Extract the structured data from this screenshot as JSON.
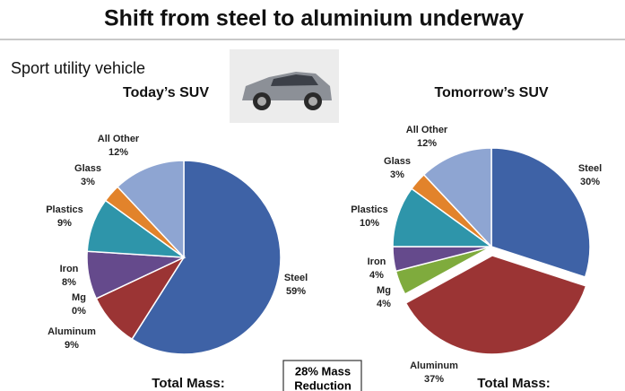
{
  "title": "Shift from steel to aluminium underway",
  "subtitle": "Sport utility vehicle",
  "annotation": [
    "28% Mass",
    "Reduction"
  ],
  "chart_data": [
    {
      "type": "pie",
      "title": "Today’s SUV",
      "categories": [
        "Steel",
        "Aluminum",
        "Mg",
        "Iron",
        "Plastics",
        "Glass",
        "All Other"
      ],
      "values": [
        59,
        9,
        0,
        8,
        9,
        3,
        12
      ],
      "value_labels": [
        "59%",
        "9%",
        "0%",
        "8%",
        "9%",
        "3%",
        "12%"
      ],
      "colors": [
        "#3e62a6",
        "#9b3434",
        "#7fab3d",
        "#654a8c",
        "#2e95aa",
        "#e2832b",
        "#8ea5d2"
      ],
      "footer": "Total Mass:"
    },
    {
      "type": "pie",
      "title": "Tomorrow’s SUV",
      "categories": [
        "Steel",
        "Aluminum",
        "Mg",
        "Iron",
        "Plastics",
        "Glass",
        "All Other"
      ],
      "values": [
        30,
        37,
        4,
        4,
        10,
        3,
        12
      ],
      "value_labels": [
        "30%",
        "37%",
        "4%",
        "4%",
        "10%",
        "3%",
        "12%"
      ],
      "colors": [
        "#3e62a6",
        "#9b3434",
        "#7fab3d",
        "#654a8c",
        "#2e95aa",
        "#e2832b",
        "#8ea5d2"
      ],
      "exploded": "Aluminum",
      "footer": "Total Mass:"
    }
  ]
}
